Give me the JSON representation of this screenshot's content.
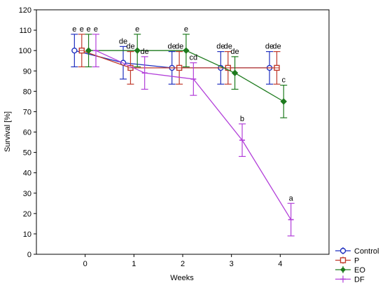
{
  "chart_data": {
    "type": "line",
    "title": "",
    "xlabel": "Weeks",
    "ylabel": "Survival [%]",
    "xlim": [
      -1,
      5
    ],
    "ylim": [
      0,
      120
    ],
    "x_ticks": [
      "0",
      "1",
      "2",
      "3",
      "4"
    ],
    "y_ticks": [
      "0",
      "10",
      "20",
      "30",
      "40",
      "50",
      "60",
      "70",
      "80",
      "90",
      "100",
      "110",
      "120"
    ],
    "grid": false,
    "legend_position": "bottom-right",
    "series": [
      {
        "name": "Control",
        "color": "#1f2fbf",
        "marker": "circle",
        "x": [
          -0.22,
          0.78,
          1.78,
          2.78,
          3.78
        ],
        "y": [
          100,
          94,
          91.5,
          91.5,
          91.5
        ],
        "err": [
          8,
          8,
          8,
          8,
          8
        ],
        "labels": [
          "e",
          "de",
          "de",
          "de",
          "de"
        ]
      },
      {
        "name": "P",
        "color": "#c0392b",
        "marker": "square",
        "x": [
          -0.07,
          0.93,
          1.93,
          2.93,
          3.93
        ],
        "y": [
          100,
          91.5,
          91.5,
          91.5,
          91.5
        ],
        "err": [
          8,
          8,
          8,
          8,
          8
        ],
        "labels": [
          "e",
          "de",
          "de",
          "de",
          "de"
        ]
      },
      {
        "name": "EO",
        "color": "#1e7b1e",
        "marker": "diamond",
        "x": [
          0.07,
          1.07,
          2.07,
          3.07,
          4.07
        ],
        "y": [
          100,
          100,
          100,
          89,
          75
        ],
        "err": [
          8,
          8,
          8,
          8,
          8
        ],
        "labels": [
          "e",
          "e",
          "e",
          "de",
          "c"
        ]
      },
      {
        "name": "DF",
        "color": "#b23fd9",
        "marker": "plus",
        "x": [
          0.22,
          1.22,
          2.22,
          3.22,
          4.22
        ],
        "y": [
          100,
          89,
          86,
          56,
          17
        ],
        "err": [
          8,
          8,
          8,
          8,
          8
        ],
        "labels": [
          "e",
          "de",
          "cd",
          "b",
          "a"
        ]
      }
    ]
  }
}
